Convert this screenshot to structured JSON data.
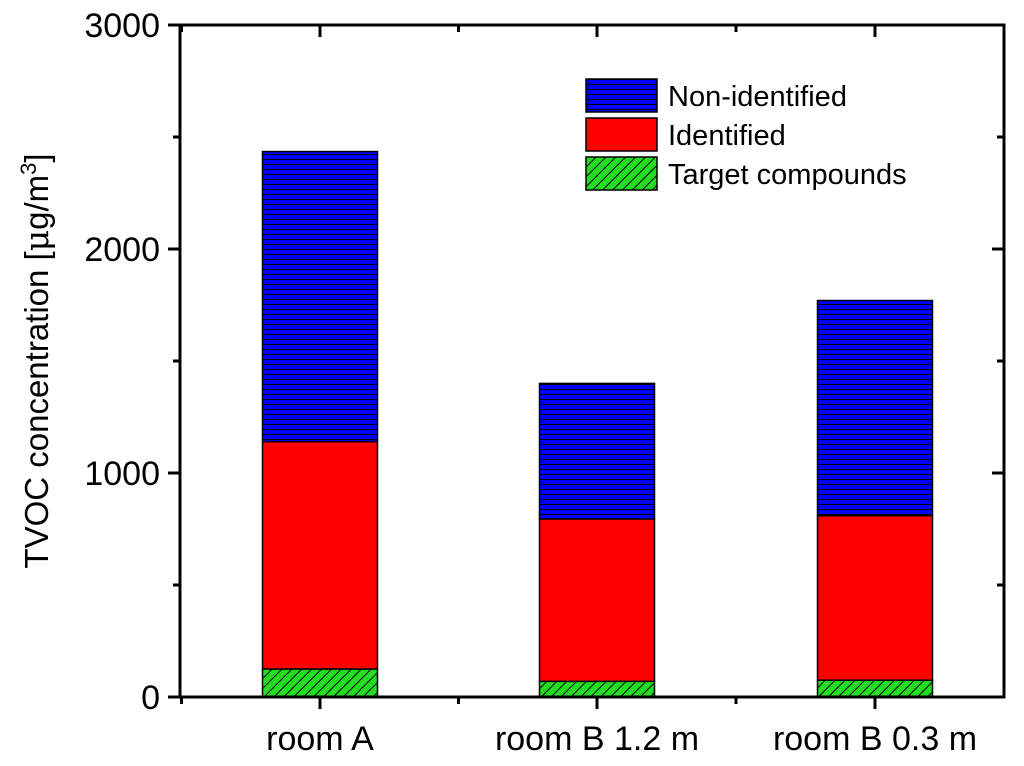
{
  "chart_data": {
    "type": "bar",
    "stacked": true,
    "categories": [
      "room A",
      "room B 1.2 m",
      "room B 0.3 m"
    ],
    "series": [
      {
        "name": "Target compounds",
        "values": [
          125,
          70,
          75
        ],
        "color": "#22dd22",
        "pattern": "diagonal-hatch"
      },
      {
        "name": "Identified",
        "values": [
          1015,
          725,
          735
        ],
        "color": "#ff0000",
        "pattern": "solid"
      },
      {
        "name": "Non-identified",
        "values": [
          1295,
          605,
          960
        ],
        "color": "#0000ff",
        "pattern": "horizontal-lines"
      }
    ],
    "totals": [
      2435,
      1400,
      1770
    ],
    "ylabel_main": "TVOC concentration [",
    "ylabel_mu": "μ",
    "ylabel_unit": "g/m",
    "ylabel_sup": "3",
    "ylabel_close": "]",
    "xlabel": "",
    "ylim": [
      0,
      3000
    ],
    "yticks": [
      0,
      1000,
      2000,
      3000
    ],
    "ytick_labels": [
      "0",
      "1000",
      "2000",
      "3000"
    ],
    "grid": false,
    "legend_position": "top-right"
  }
}
